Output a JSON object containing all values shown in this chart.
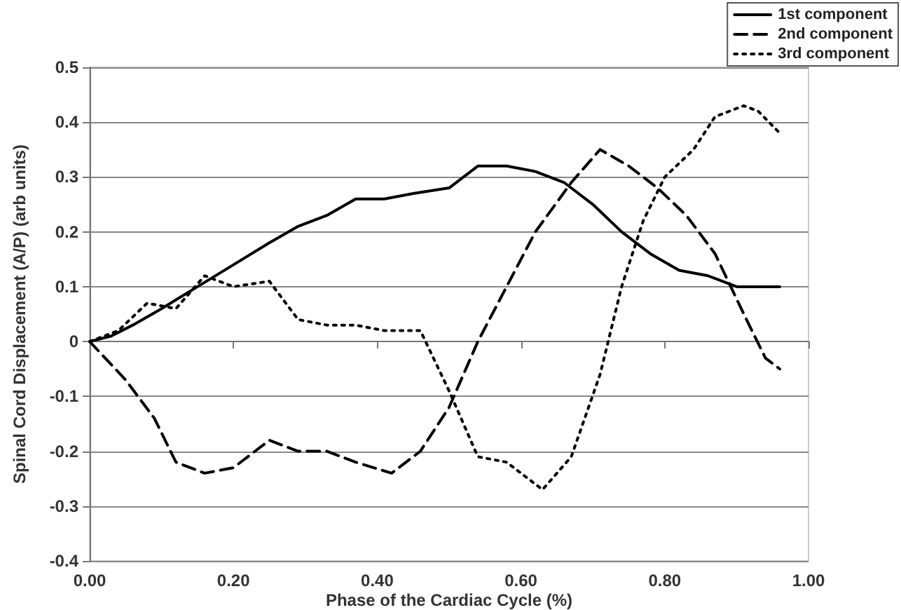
{
  "chart_data": {
    "type": "line",
    "xlabel": "Phase of the Cardiac Cycle (%)",
    "ylabel": "Spinal Cord Displacement (A/P) (arb units)",
    "xlim": [
      0,
      1
    ],
    "xticks": [
      {
        "value": 0,
        "label": "0.00"
      },
      {
        "value": 0.2,
        "label": "0.20"
      },
      {
        "value": 0.4,
        "label": "0.40"
      },
      {
        "value": 0.6,
        "label": "0.60"
      },
      {
        "value": 0.8,
        "label": "0.80"
      },
      {
        "value": 1,
        "label": "1.00"
      }
    ],
    "ylim": [
      -0.4,
      0.5
    ],
    "yticks": [
      -0.4,
      -0.3,
      -0.2,
      -0.1,
      0,
      0.1,
      0.2,
      0.3,
      0.4,
      0.5
    ],
    "grid": "y",
    "legend": "top right",
    "marker": "none",
    "series": [
      {
        "name": "1st component",
        "color": "#000000",
        "line_style": "solid",
        "x": [
          0,
          0.03,
          0.06,
          0.1,
          0.15,
          0.2,
          0.25,
          0.29,
          0.33,
          0.37,
          0.41,
          0.45,
          0.5,
          0.54,
          0.58,
          0.62,
          0.66,
          0.7,
          0.74,
          0.78,
          0.82,
          0.86,
          0.9,
          0.93,
          0.96
        ],
        "values": [
          0,
          0.01,
          0.03,
          0.06,
          0.1,
          0.14,
          0.18,
          0.21,
          0.23,
          0.26,
          0.26,
          0.27,
          0.28,
          0.32,
          0.32,
          0.31,
          0.29,
          0.25,
          0.2,
          0.16,
          0.13,
          0.12,
          0.1,
          0.1,
          0.1
        ]
      },
      {
        "name": "2nd component",
        "color": "#000000",
        "line_style": "dashed",
        "x": [
          0,
          0.05,
          0.09,
          0.12,
          0.16,
          0.2,
          0.25,
          0.29,
          0.33,
          0.37,
          0.42,
          0.46,
          0.5,
          0.54,
          0.58,
          0.62,
          0.67,
          0.71,
          0.75,
          0.79,
          0.83,
          0.87,
          0.91,
          0.94,
          0.96
        ],
        "values": [
          0,
          -0.07,
          -0.14,
          -0.22,
          -0.24,
          -0.23,
          -0.18,
          -0.2,
          -0.2,
          -0.22,
          -0.24,
          -0.2,
          -0.12,
          0,
          0.1,
          0.2,
          0.29,
          0.35,
          0.32,
          0.28,
          0.23,
          0.16,
          0.05,
          -0.03,
          -0.05
        ]
      },
      {
        "name": "3rd component",
        "color": "#000000",
        "line_style": "dotted",
        "x": [
          0,
          0.04,
          0.08,
          0.12,
          0.16,
          0.2,
          0.25,
          0.29,
          0.33,
          0.37,
          0.41,
          0.46,
          0.5,
          0.54,
          0.58,
          0.63,
          0.67,
          0.71,
          0.74,
          0.77,
          0.8,
          0.84,
          0.87,
          0.91,
          0.93,
          0.96
        ],
        "values": [
          0,
          0.02,
          0.07,
          0.06,
          0.12,
          0.1,
          0.11,
          0.04,
          0.03,
          0.03,
          0.02,
          0.02,
          -0.09,
          -0.21,
          -0.22,
          -0.27,
          -0.21,
          -0.06,
          0.1,
          0.22,
          0.3,
          0.35,
          0.41,
          0.43,
          0.42,
          0.38
        ]
      }
    ]
  }
}
